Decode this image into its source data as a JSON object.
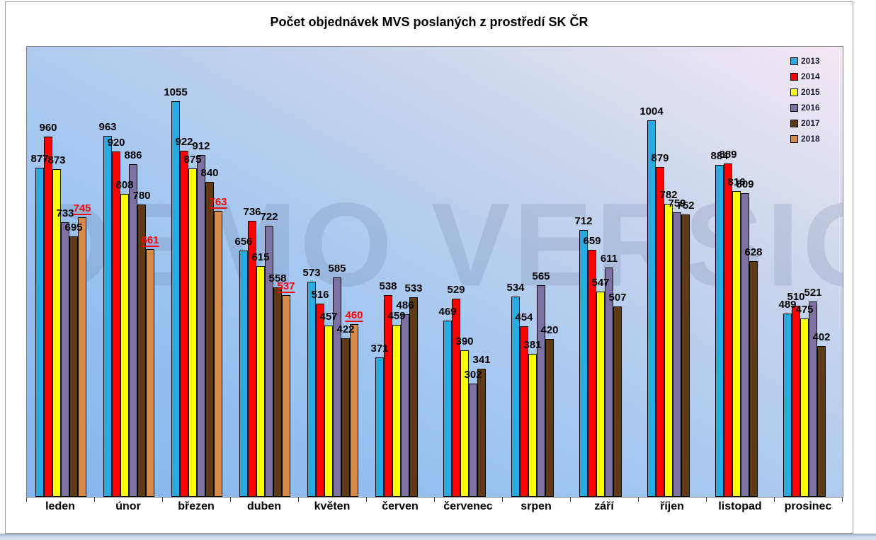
{
  "title": "Počet objednávek MVS poslaných z prostředí SK ČR",
  "watermark": "DEMO VERSION",
  "chart_data": {
    "type": "bar",
    "title": "Počet objednávek MVS poslaných z prostředí SK ČR",
    "categories": [
      "leden",
      "únor",
      "březen",
      "duben",
      "květen",
      "červen",
      "červenec",
      "srpen",
      "září",
      "říjen",
      "listopad",
      "prosinec"
    ],
    "series": [
      {
        "name": "2013",
        "color": "#29ABE2",
        "values": [
          877,
          963,
          1055,
          656,
          573,
          371,
          469,
          534,
          712,
          1004,
          884,
          489
        ]
      },
      {
        "name": "2014",
        "color": "#FF0000",
        "values": [
          960,
          920,
          922,
          736,
          516,
          538,
          529,
          454,
          659,
          879,
          889,
          510
        ]
      },
      {
        "name": "2015",
        "color": "#FFFF00",
        "values": [
          873,
          808,
          875,
          615,
          457,
          459,
          390,
          381,
          547,
          782,
          816,
          475
        ]
      },
      {
        "name": "2016",
        "color": "#7D70A2",
        "values": [
          733,
          886,
          912,
          722,
          585,
          486,
          302,
          565,
          611,
          759,
          809,
          521
        ]
      },
      {
        "name": "2017",
        "color": "#5E3A17",
        "values": [
          695,
          780,
          840,
          558,
          422,
          533,
          341,
          420,
          507,
          752,
          628,
          402
        ]
      },
      {
        "name": "2018",
        "color": "#D68C46",
        "values": [
          745,
          661,
          763,
          537,
          460,
          null,
          null,
          null,
          null,
          null,
          null,
          null
        ],
        "label_style": "red-underline",
        "label_color": "#FF0000"
      }
    ],
    "ylim": [
      0,
      1200
    ],
    "gridlines": false,
    "value_labels": true,
    "legend_position": "inside-top-right",
    "xlabel": "",
    "ylabel": ""
  },
  "colors": {
    "plot_gradient_bottom_left": "#85B4EB",
    "plot_gradient_top_right": "#F4E9F3",
    "bar_border": "#000000",
    "value_label": "#000000",
    "highlight_value_label": "#FF0000",
    "watermark": "rgba(90,110,150,0.18)"
  }
}
